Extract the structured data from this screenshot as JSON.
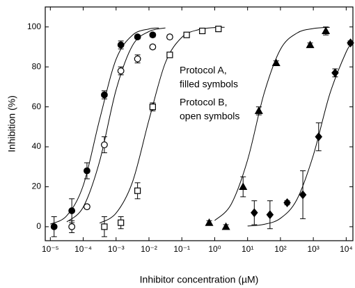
{
  "chart_data": {
    "type": "scatter",
    "x_label": "Inhibitor concentration (µM)",
    "y_label": "Inhibition (%)",
    "x_scale": "log",
    "xlim": [
      7e-06,
      16000
    ],
    "ylim": [
      -7,
      110
    ],
    "xticks": [
      {
        "value": 1e-05,
        "label": "10⁻⁵"
      },
      {
        "value": 0.0001,
        "label": "10⁻⁴"
      },
      {
        "value": 0.001,
        "label": "10⁻³"
      },
      {
        "value": 0.01,
        "label": "10⁻²"
      },
      {
        "value": 0.1,
        "label": "10⁻¹"
      },
      {
        "value": 1,
        "label": "10⁰"
      },
      {
        "value": 10,
        "label": "10¹"
      },
      {
        "value": 100,
        "label": "10²"
      },
      {
        "value": 1000,
        "label": "10³"
      },
      {
        "value": 10000,
        "label": "10⁴"
      }
    ],
    "yticks": [
      0,
      20,
      40,
      60,
      80,
      100
    ],
    "annotations": [
      "Protocol A,",
      "filled symbols",
      "Protocol B,",
      "open symbols"
    ],
    "series": [
      {
        "marker": "circle",
        "filled": true,
        "color": "#000000",
        "x": [
          1.3e-05,
          4.5e-05,
          0.00013,
          0.00044,
          0.0014,
          0.0045,
          0.013
        ],
        "values": [
          0,
          8,
          28,
          66,
          91,
          95,
          96
        ],
        "errors": [
          5,
          6,
          4,
          2,
          2,
          1,
          1
        ],
        "fit": {
          "x": [
            1e-05,
            3.16e-05,
            0.0001,
            0.000316,
            0.001,
            0.00316,
            0.01,
            0.02
          ],
          "values": [
            1.3,
            5.5,
            20.6,
            53.7,
            83.8,
            95.9,
            99.0,
            99.5
          ]
        }
      },
      {
        "marker": "circle",
        "filled": false,
        "color": "#000000",
        "x": [
          4.5e-05,
          0.00013,
          0.00044,
          0.0014,
          0.0045,
          0.013,
          0.043
        ],
        "values": [
          0,
          10,
          41,
          78,
          84,
          90,
          95
        ],
        "errors": [
          3,
          1,
          4,
          2,
          2,
          1,
          1
        ],
        "fit": {
          "x": [
            3.16e-05,
            0.0001,
            0.000316,
            0.001,
            0.00316,
            0.01,
            0.0316
          ],
          "values": [
            2.4,
            9.8,
            32.8,
            68.5,
            90.7,
            97.7,
            99.5
          ]
        }
      },
      {
        "marker": "square",
        "filled": false,
        "color": "#000000",
        "x": [
          0.00044,
          0.0014,
          0.0045,
          0.013,
          0.043,
          0.14,
          0.42,
          1.3
        ],
        "values": [
          0,
          2,
          18,
          60,
          86,
          96,
          98,
          99
        ],
        "errors": [
          5,
          3,
          4,
          2,
          1,
          1,
          1,
          1
        ],
        "fit": {
          "x": [
            0.000316,
            0.001,
            0.00316,
            0.01,
            0.0316,
            0.1,
            0.316,
            1,
            2
          ],
          "values": [
            1.8,
            6.8,
            22.4,
            53.4,
            82.1,
            94.8,
            98.6,
            99.7,
            99.8
          ]
        }
      },
      {
        "marker": "triangle",
        "filled": true,
        "color": "#000000",
        "x": [
          0.68,
          2.2,
          7.3,
          22,
          74,
          800,
          2400
        ],
        "values": [
          2,
          0,
          20,
          58,
          82,
          91,
          98
        ],
        "errors": [
          1,
          1,
          5,
          2,
          1,
          1,
          2
        ],
        "fit": {
          "x": [
            1,
            3.16,
            10,
            31.6,
            100,
            316,
            1000,
            3162
          ],
          "values": [
            3.1,
            11.2,
            33.4,
            66.6,
            88.8,
            96.9,
            99.2,
            99.8
          ]
        }
      },
      {
        "marker": "diamond",
        "filled": true,
        "color": "#000000",
        "x": [
          16,
          48,
          160,
          480,
          1450,
          4600,
          13500
        ],
        "values": [
          7,
          6,
          12,
          16,
          45,
          77,
          92
        ],
        "errors": [
          6,
          7,
          1,
          12,
          7,
          2,
          1
        ],
        "fit": {
          "x": [
            10,
            31.6,
            100,
            316,
            1000,
            3162,
            10000,
            15800
          ],
          "values": [
            0.35,
            1.2,
            4.2,
            13.6,
            35.8,
            66.4,
            87.5,
            92.1
          ]
        }
      }
    ]
  }
}
